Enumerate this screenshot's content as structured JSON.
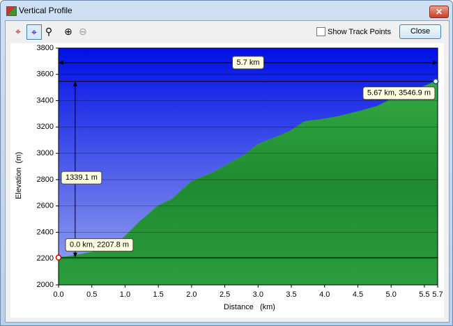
{
  "window": {
    "title": "Vertical Profile",
    "checkbox": "Show Track Points",
    "close_button": "Close"
  },
  "chart_data": {
    "type": "area",
    "xlabel": "Distance   (km)",
    "ylabel": "Elevation  (m)",
    "x": [
      0.0,
      0.2,
      0.5,
      0.8,
      1.0,
      1.2,
      1.4,
      1.5,
      1.7,
      2.0,
      2.3,
      2.5,
      2.8,
      3.0,
      3.3,
      3.5,
      3.7,
      3.9,
      4.2,
      4.5,
      4.8,
      5.0,
      5.3,
      5.67
    ],
    "values": [
      2207.8,
      2220,
      2249,
      2290,
      2370,
      2471,
      2560,
      2603,
      2650,
      2788,
      2850,
      2905,
      2990,
      3069,
      3130,
      3175,
      3243,
      3254,
      3280,
      3317,
      3360,
      3413,
      3470,
      3546.9
    ],
    "color": "#2a9a3a",
    "xlim": [
      0,
      5.7
    ],
    "ylim": [
      2000,
      3800
    ],
    "xticks": [
      {
        "value": 0,
        "label": "0.0"
      },
      0.5,
      {
        "value": 1,
        "label": "1.0"
      },
      1.5,
      {
        "value": 2,
        "label": "2.0"
      },
      2.5,
      {
        "value": 3,
        "label": "3.0"
      },
      3.5,
      {
        "value": 4,
        "label": "4.0"
      },
      4.5,
      {
        "value": 5,
        "label": "5.0"
      },
      5.5,
      5.7
    ],
    "yticks": [
      2000,
      2200,
      2400,
      2600,
      2800,
      3000,
      3200,
      3400,
      3600,
      3800
    ],
    "grid": true,
    "annotations": {
      "distance": "5.7 km",
      "climb": "1339.1 m",
      "start": "0.0 km, 2207.8 m",
      "end": "5.67 km, 3546.9 m"
    }
  }
}
